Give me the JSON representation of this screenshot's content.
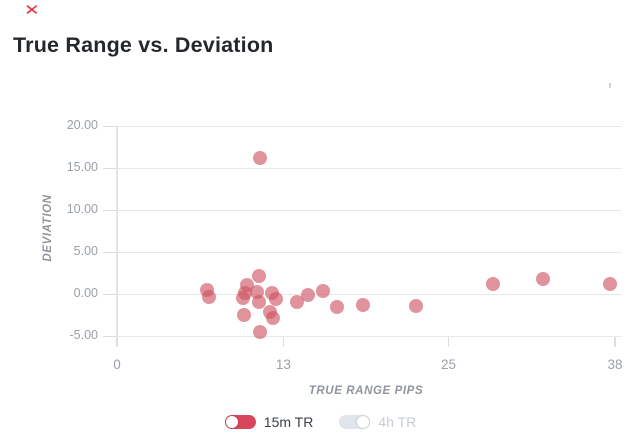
{
  "annotation": {
    "mark": "✕",
    "color": "#e7323f"
  },
  "header": {
    "title": "True Range vs. Deviation"
  },
  "chart_data": {
    "type": "scatter",
    "title": "True Range vs. Deviation",
    "xlabel": "TRUE RANGE PIPS",
    "ylabel": "DEVIATION",
    "xlim": [
      0,
      38
    ],
    "ylim": [
      -6.5,
      20.5
    ],
    "grid": true,
    "legend_position": "bottom",
    "x_ticks": [
      {
        "v": 0,
        "label": "0"
      },
      {
        "v": 12.7,
        "label": "13"
      },
      {
        "v": 25.3,
        "label": "25"
      },
      {
        "v": 38,
        "label": "38"
      }
    ],
    "y_ticks": [
      {
        "v": 20,
        "label": "20.00"
      },
      {
        "v": 15,
        "label": "15.00"
      },
      {
        "v": 10,
        "label": "10.00"
      },
      {
        "v": 5,
        "label": "5.00"
      },
      {
        "v": 0,
        "label": "0.00"
      },
      {
        "v": -5,
        "label": "-5.00"
      }
    ],
    "series": [
      {
        "name": "15m TR",
        "color": "#d7465a",
        "point_fill": "rgba(205,80,95,0.62)",
        "points": [
          {
            "x": 10.9,
            "y": 16.2
          },
          {
            "x": 6.9,
            "y": 0.5
          },
          {
            "x": 7.0,
            "y": -0.4
          },
          {
            "x": 10.8,
            "y": 2.2
          },
          {
            "x": 9.9,
            "y": 1.1
          },
          {
            "x": 9.8,
            "y": 0.1
          },
          {
            "x": 9.6,
            "y": -0.5
          },
          {
            "x": 10.7,
            "y": 0.2
          },
          {
            "x": 10.8,
            "y": -0.9
          },
          {
            "x": 11.8,
            "y": 0.1
          },
          {
            "x": 12.1,
            "y": -0.6
          },
          {
            "x": 9.7,
            "y": -2.5
          },
          {
            "x": 11.7,
            "y": -2.1
          },
          {
            "x": 11.9,
            "y": -2.8
          },
          {
            "x": 10.9,
            "y": -4.5
          },
          {
            "x": 13.7,
            "y": -1.0
          },
          {
            "x": 14.6,
            "y": -0.1
          },
          {
            "x": 15.7,
            "y": 0.3
          },
          {
            "x": 16.8,
            "y": -1.6
          },
          {
            "x": 18.8,
            "y": -1.3
          },
          {
            "x": 22.8,
            "y": -1.4
          },
          {
            "x": 28.7,
            "y": 1.2
          },
          {
            "x": 32.5,
            "y": 1.8
          },
          {
            "x": 37.6,
            "y": 1.2
          }
        ]
      },
      {
        "name": "4h TR",
        "color": "#dfe5ea",
        "points": []
      }
    ],
    "legend": [
      {
        "label": "15m TR",
        "active": true,
        "knob_side": "left",
        "toggle_color": "#d7465a",
        "label_color": "#3b4046"
      },
      {
        "label": "4h TR",
        "active": false,
        "knob_side": "right",
        "toggle_color": "#dfe5ea",
        "label_color": "#c6ccd4"
      }
    ]
  },
  "colors": {
    "grid": "#e9e9e9",
    "tick": "#d9dde1",
    "axis_text": "#9aa1a8",
    "axis_title": "#8f959c",
    "title_text": "#24282c",
    "background": "#ffffff"
  }
}
